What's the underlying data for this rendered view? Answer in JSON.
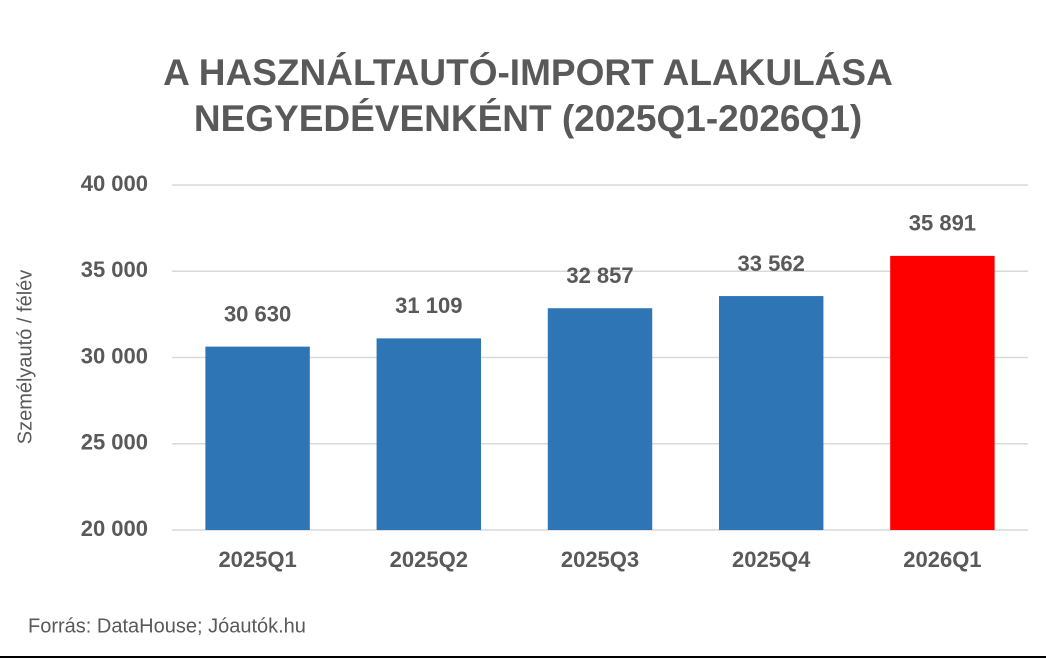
{
  "chart_data": {
    "type": "bar",
    "title": [
      "A HASZNÁLTAUTÓ-IMPORT ALAKULÁSA",
      "NEGYEDÉVENKÉNT (2025Q1-2026Q1)"
    ],
    "y_label": "Személyautó / félév",
    "categories": [
      "2025Q1",
      "2025Q2",
      "2025Q3",
      "2025Q4",
      "2026Q1"
    ],
    "values": [
      30630,
      31109,
      32857,
      33562,
      35891
    ],
    "value_labels": [
      "30 630",
      "31 109",
      "32 857",
      "33 562",
      "35 891"
    ],
    "colors": [
      "#2e75b6",
      "#2e75b6",
      "#2e75b6",
      "#2e75b6",
      "#ff0000"
    ],
    "ylim": [
      20000,
      40000
    ],
    "yticks": [
      {
        "value": 20000,
        "label": "20 000"
      },
      {
        "value": 25000,
        "label": "25 000"
      },
      {
        "value": 30000,
        "label": "30 000"
      },
      {
        "value": 35000,
        "label": "35 000"
      },
      {
        "value": 40000,
        "label": "40 000"
      }
    ],
    "grid": true,
    "source": "Forrás: DataHouse; Jóautók.hu"
  }
}
